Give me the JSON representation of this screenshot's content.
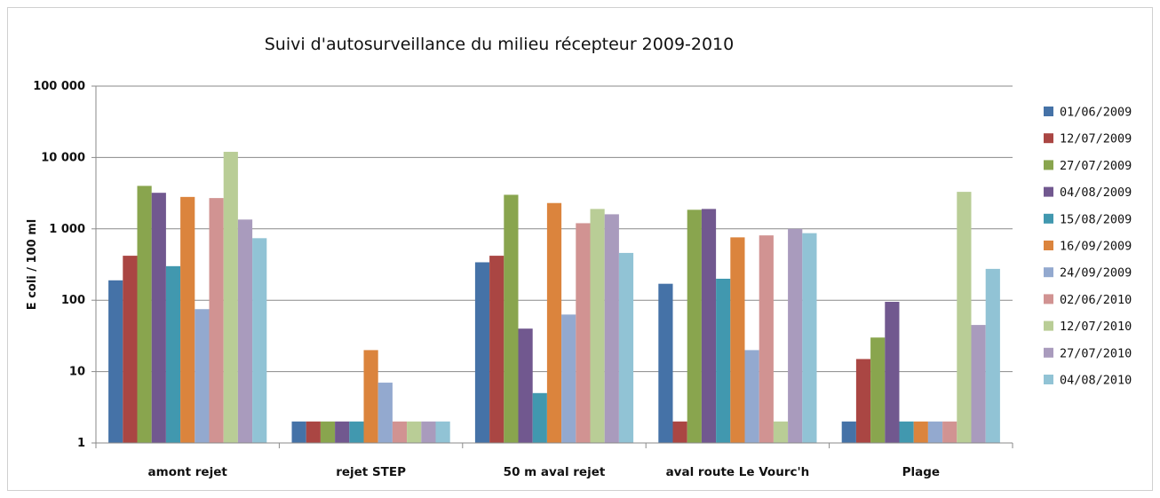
{
  "chart_data": {
    "type": "bar",
    "title": "Suivi d'autosurveillance  du milieu récepteur 2009-2010",
    "ylabel": "E coli / 100 ml",
    "xlabel": "",
    "yscale": "log",
    "ylim": [
      1,
      100000
    ],
    "yticks": [
      1,
      10,
      100,
      1000,
      10000,
      100000
    ],
    "ytick_labels": [
      "1",
      "10",
      "100",
      "1 000",
      "10 000",
      "100 000"
    ],
    "grid": "horizontal",
    "legend_position": "right",
    "categories": [
      "amont rejet",
      "rejet STEP",
      "50 m aval rejet",
      "aval route Le Vourc'h",
      "Plage"
    ],
    "series": [
      {
        "name": "01/06/2009",
        "color": "#4572A7",
        "values": [
          190,
          2,
          340,
          170,
          2
        ]
      },
      {
        "name": "12/07/2009",
        "color": "#AA4643",
        "values": [
          420,
          2,
          420,
          2,
          15
        ]
      },
      {
        "name": "27/07/2009",
        "color": "#89A54E",
        "values": [
          4000,
          2,
          3000,
          1850,
          30
        ]
      },
      {
        "name": "04/08/2009",
        "color": "#71588F",
        "values": [
          3200,
          2,
          40,
          1900,
          95
        ]
      },
      {
        "name": "15/08/2009",
        "color": "#4198AF",
        "values": [
          300,
          2,
          5,
          200,
          2
        ]
      },
      {
        "name": "16/09/2009",
        "color": "#DB843D",
        "values": [
          2800,
          20,
          2300,
          760,
          2
        ]
      },
      {
        "name": "24/09/2009",
        "color": "#93A9CF",
        "values": [
          75,
          7,
          63,
          20,
          2
        ]
      },
      {
        "name": "02/06/2010",
        "color": "#D19392",
        "values": [
          2700,
          2,
          1200,
          810,
          2
        ]
      },
      {
        "name": "12/07/2010",
        "color": "#B9CD96",
        "values": [
          12000,
          2,
          1900,
          2,
          3300
        ]
      },
      {
        "name": "27/07/2010",
        "color": "#A99BBD",
        "values": [
          1350,
          2,
          1600,
          1000,
          45
        ]
      },
      {
        "name": "04/08/2010",
        "color": "#91C3D5",
        "values": [
          740,
          2,
          460,
          870,
          275
        ]
      }
    ]
  }
}
